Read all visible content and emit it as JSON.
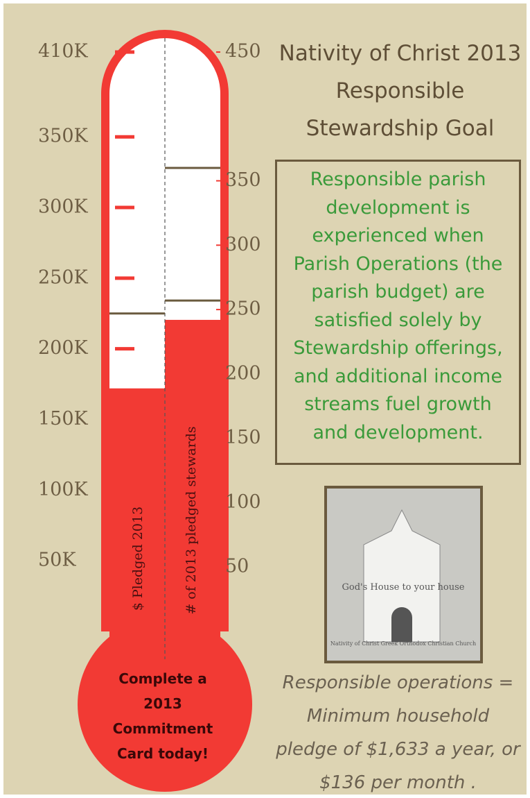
{
  "chart_data": {
    "type": "thermometer",
    "title": "Nativity of Christ 2013 Responsible Stewardship Goal",
    "series": [
      {
        "name": "$ Pledged 2013",
        "color": "#f23a34",
        "values": [
          172000
        ]
      },
      {
        "name": "# of 2013 pledged stewards",
        "color": "#f23a34",
        "values": [
          242
        ],
        "axis": "y2"
      }
    ],
    "ylim": [
      0,
      410000
    ],
    "yticks": [
      {
        "value": 50000,
        "label": "50K"
      },
      {
        "value": 100000,
        "label": "100K"
      },
      {
        "value": 150000,
        "label": "150K"
      },
      {
        "value": 200000,
        "label": "200K"
      },
      {
        "value": 250000,
        "label": "250K"
      },
      {
        "value": 300000,
        "label": "300K"
      },
      {
        "value": 350000,
        "label": "350K"
      },
      {
        "value": 410000,
        "label": "410K"
      }
    ],
    "y2lim": [
      0,
      450
    ],
    "y2ticks": [
      50,
      100,
      150,
      200,
      250,
      300,
      350,
      450
    ],
    "markers": {
      "y": [
        225000
      ],
      "y2": [
        360,
        257
      ]
    },
    "bulb_text": "Complete a 2013 Commitment Card today!",
    "description": "Responsible parish development is experienced when Parish Operations (the parish budget) are satisfied solely by Stewardship offerings, and additional income streams fuel growth and development.",
    "image_caption": "God's House to your house",
    "image_subcaption": "Nativity of Christ Greek Orthodox Christian Church",
    "footnote": "Responsible operations = Minimum household pledge of $1,633 a year, or $136 per month ."
  }
}
